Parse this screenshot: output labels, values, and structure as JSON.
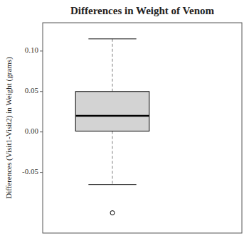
{
  "chart_data": {
    "type": "box",
    "title": "Differences in Weight of Venom",
    "ylabel": "Differences (Visit1-Visit2) in Weight (grams)",
    "ylim": [
      -0.125,
      0.135
    ],
    "yticks": [
      -0.05,
      {
        "value": 0,
        "label": "0.00"
      },
      0.05,
      {
        "value": 0.1,
        "label": "0.10"
      }
    ],
    "q1": 0.001,
    "median": 0.02,
    "q3": 0.05,
    "whisker_low": -0.065,
    "whisker_high": 0.115,
    "outliers": [
      -0.1
    ],
    "color": "#d3d3d3",
    "grid": false,
    "tick_labels": "y"
  }
}
